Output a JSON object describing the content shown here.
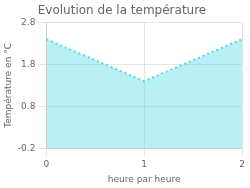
{
  "chart_data": {
    "type": "area",
    "title": "Evolution de la température",
    "xlabel": "heure par heure",
    "ylabel": "Température en °C",
    "x": [
      0,
      1,
      2
    ],
    "values": [
      2.4,
      1.4,
      2.4
    ],
    "color": "#4dd9e8",
    "line_style": "dotted",
    "xlim": [
      0,
      2
    ],
    "xticks": [
      0,
      1,
      2
    ],
    "ylim": [
      -0.2,
      2.8
    ],
    "yticks": [
      -0.2,
      0.8,
      1.8,
      2.8
    ],
    "grid": true
  }
}
